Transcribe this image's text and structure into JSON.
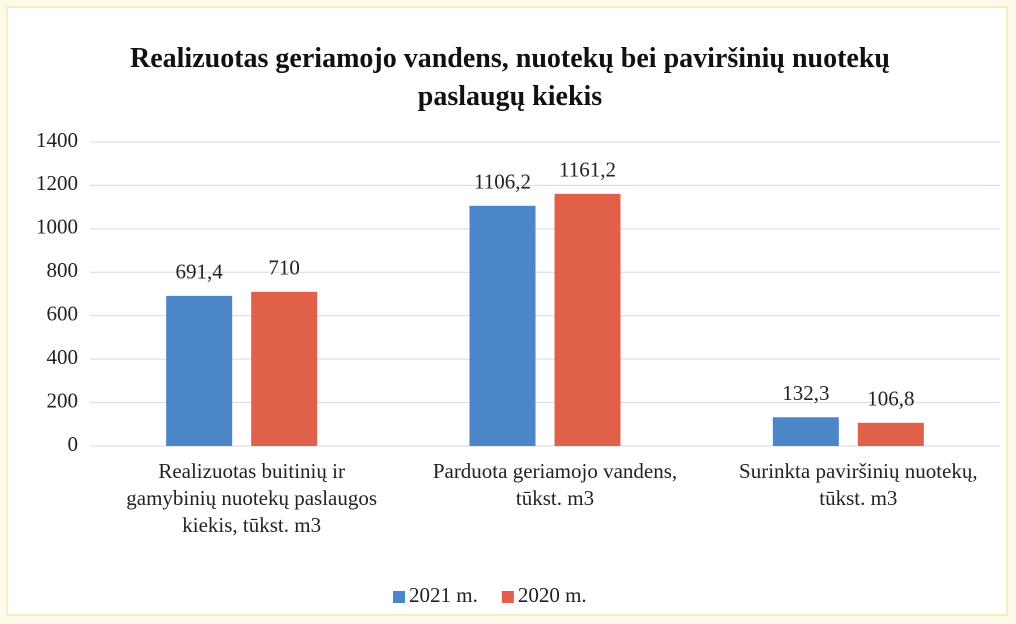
{
  "chart_data": {
    "type": "bar",
    "title": "Realizuotas geriamojo vandens, nuotekų bei paviršinių nuotekų paslaugų kiekis",
    "categories": [
      "Realizuotas buitinių ir gamybinių nuotekų paslaugos kiekis, tūkst. m3",
      "Parduota geriamojo vandens, tūkst. m3",
      "Surinkta paviršinių nuotekų, tūkst. m3"
    ],
    "series": [
      {
        "name": "2021 m.",
        "color": "#4a86c8",
        "values": [
          691.4,
          1106.2,
          132.3
        ],
        "value_labels": [
          "691,4",
          "1106,2",
          "132,3"
        ]
      },
      {
        "name": "2020 m.",
        "color": "#e0604a",
        "values": [
          710,
          1161.2,
          106.8
        ],
        "value_labels": [
          "710",
          "1161,2",
          "106,8"
        ]
      }
    ],
    "ylim": [
      0,
      1400
    ],
    "yticks": [
      0,
      200,
      400,
      600,
      800,
      1000,
      1200,
      1400
    ],
    "grid": true,
    "legend": "bottom"
  }
}
